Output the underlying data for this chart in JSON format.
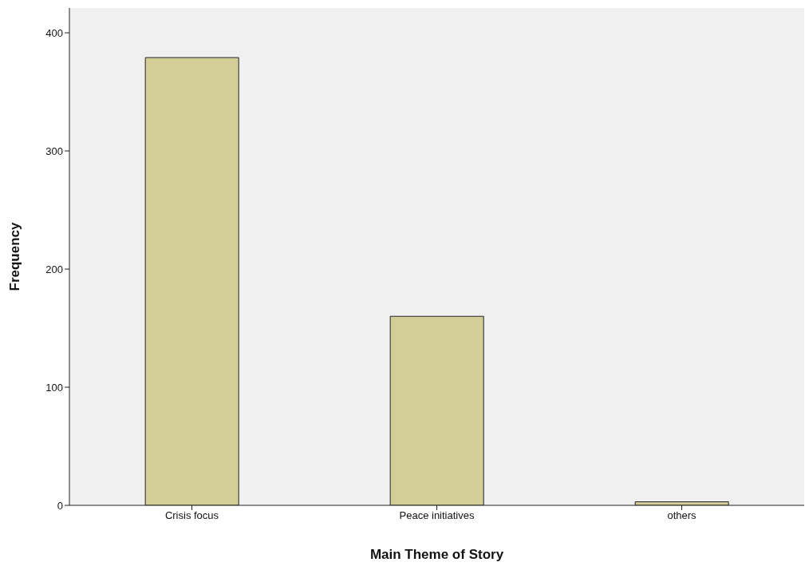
{
  "chart_data": {
    "type": "bar",
    "xlabel": "Main Theme of Story",
    "ylabel": "Frequency",
    "categories": [
      "Crisis focus",
      "Peace initiatives",
      "others"
    ],
    "values": [
      379,
      160,
      3
    ],
    "color": "#d3ce97",
    "ylim": [
      0,
      421
    ],
    "yticks": [
      0,
      100,
      200,
      300,
      400
    ],
    "grid": false
  }
}
